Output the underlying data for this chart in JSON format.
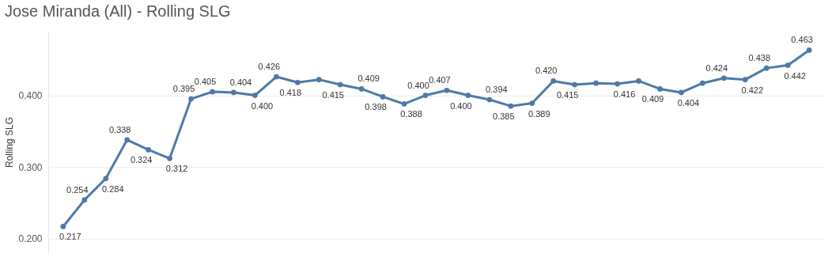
{
  "chart_data": {
    "type": "line",
    "title": "Jose Miranda (All) - Rolling SLG",
    "ylabel": "Rolling SLG",
    "categories": [
      null,
      null,
      null,
      null,
      null,
      null,
      null,
      null,
      null,
      null,
      null,
      null,
      null,
      null,
      null,
      null,
      null,
      null,
      null,
      null,
      null,
      null,
      null,
      null,
      null,
      null,
      null,
      null,
      null,
      null,
      null,
      null,
      null,
      null,
      null,
      null
    ],
    "series": [
      {
        "color": "#4e79a7",
        "values": [
          0.217,
          0.254,
          0.284,
          0.338,
          0.324,
          0.312,
          0.395,
          0.405,
          0.404,
          0.4,
          0.426,
          0.418,
          0.422,
          0.415,
          0.409,
          0.398,
          0.388,
          0.4,
          0.407,
          0.4,
          0.394,
          0.385,
          0.389,
          0.42,
          0.415,
          0.417,
          0.416,
          0.42,
          0.409,
          0.404,
          0.417,
          0.424,
          0.422,
          0.438,
          0.442,
          0.463
        ],
        "value_labels": [
          "0.217",
          "0.254",
          "0.284",
          "0.338",
          "0.324",
          "0.312",
          "0.395",
          "0.405",
          "0.404",
          "0.400",
          "0.426",
          "0.418",
          null,
          "0.415",
          "0.409",
          "0.398",
          "0.388",
          "0.400",
          "0.407",
          "0.400",
          "0.394",
          "0.385",
          "0.389",
          "0.420",
          "0.415",
          null,
          "0.416",
          null,
          "0.409",
          "0.404",
          null,
          "0.424",
          "0.422",
          "0.438",
          "0.442",
          "0.463"
        ]
      }
    ],
    "ylim": [
      0.18,
      0.49
    ],
    "yticks": [
      {
        "value": 0.2,
        "label": "0.200"
      },
      {
        "value": 0.3,
        "label": "0.300"
      },
      {
        "value": 0.4,
        "label": "0.400"
      }
    ],
    "grid": "y",
    "marker": "circle",
    "line_style": "solid"
  }
}
